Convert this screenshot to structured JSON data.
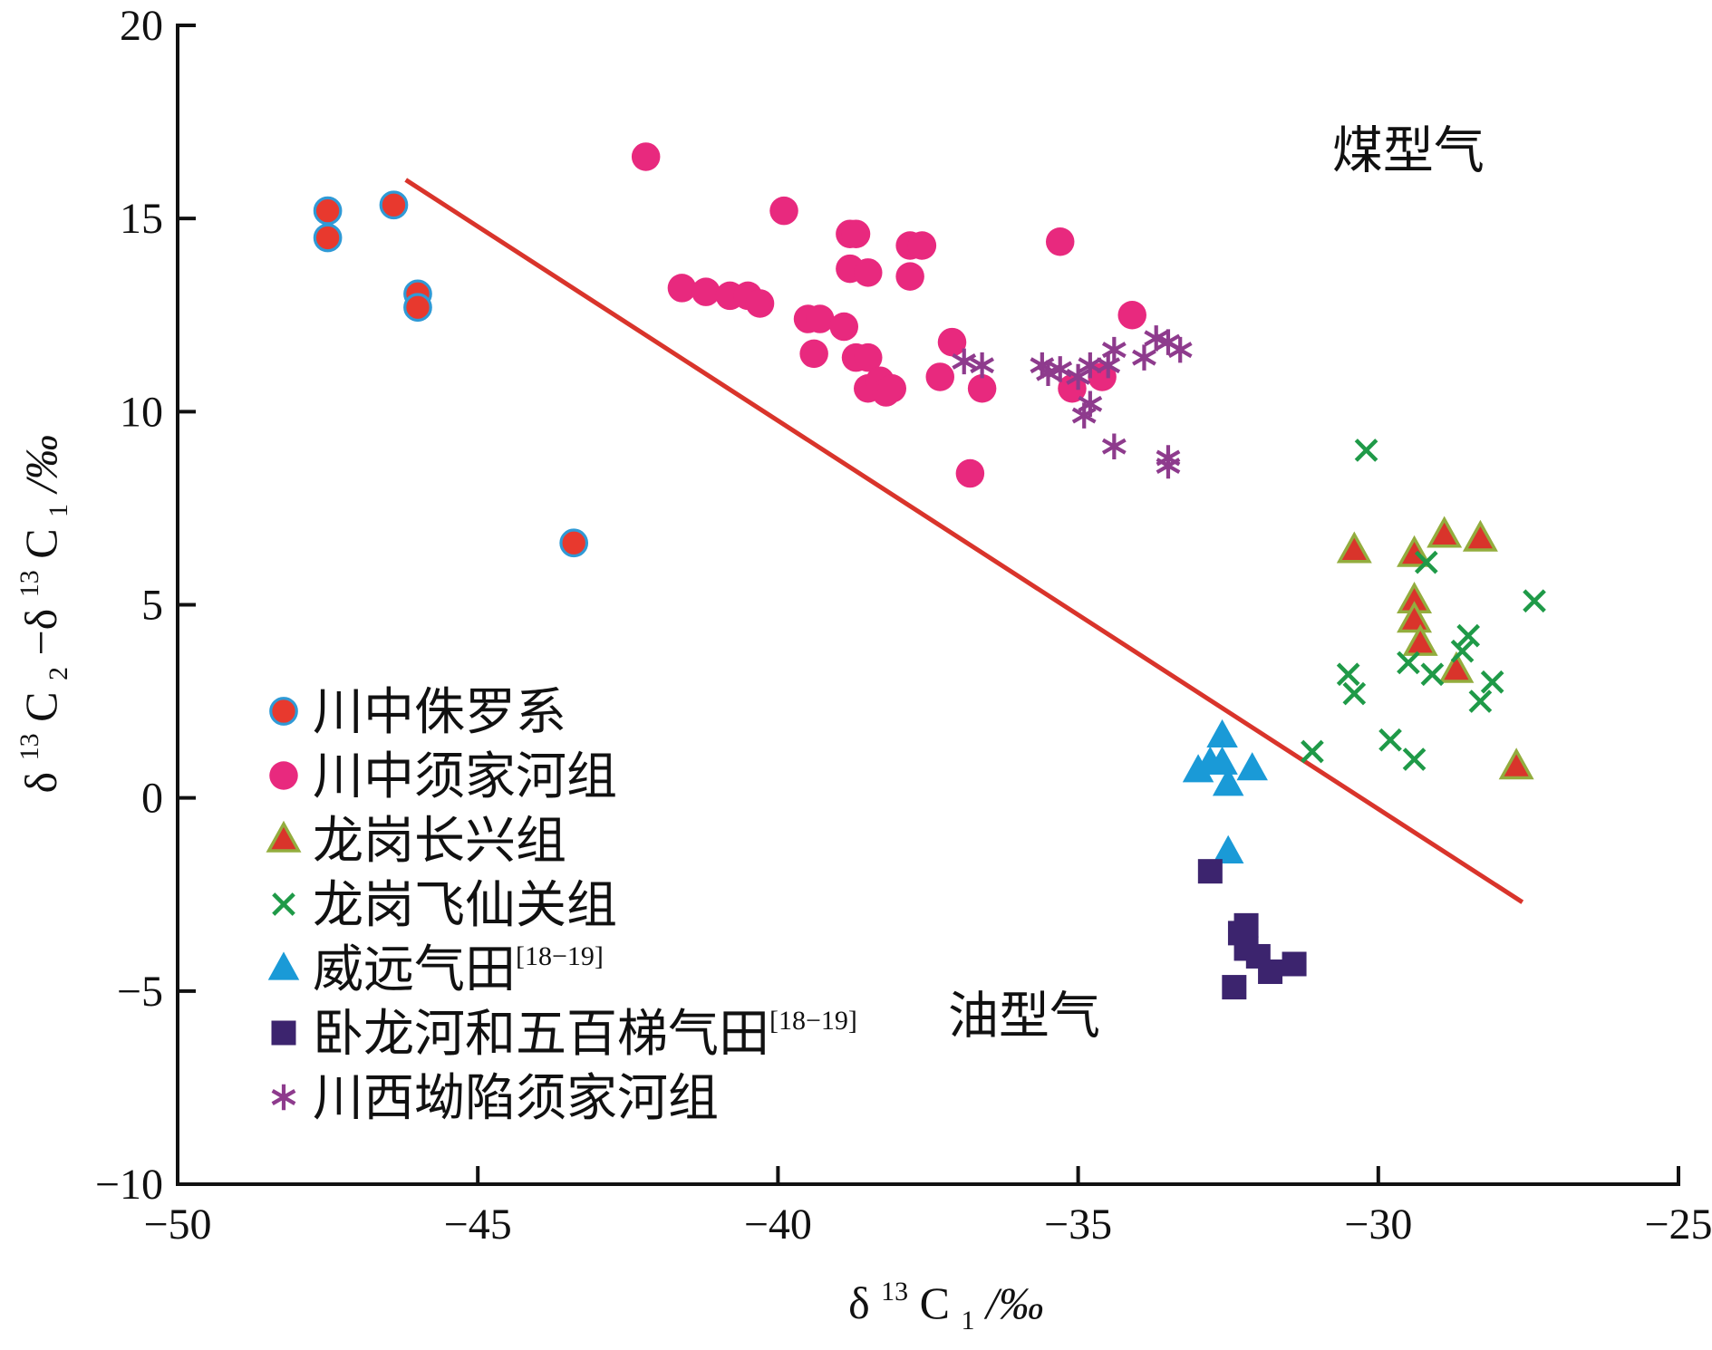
{
  "chart_data": {
    "type": "scatter",
    "xlabel": {
      "main": "δ",
      "sup1": "13",
      "c": "C",
      "sub1": "1",
      "unit": "/‰"
    },
    "ylabel": {
      "main": "δ",
      "sup1": "13",
      "c": "C",
      "sub1": "2",
      "minus": "−δ",
      "sup2": "13",
      "c2": "C",
      "sub2": "1",
      "unit": "/‰"
    },
    "xlim": [
      -50,
      -25
    ],
    "ylim": [
      -10,
      20
    ],
    "xticks": [
      -50,
      -45,
      -40,
      -35,
      -30,
      -25
    ],
    "yticks": [
      -10,
      -5,
      0,
      5,
      10,
      15,
      20
    ],
    "xtick_labels": [
      "−50",
      "−45",
      "−40",
      "−35",
      "−30",
      "−25"
    ],
    "ytick_labels": [
      "−10",
      "−5",
      "0",
      "5",
      "10",
      "15",
      "20"
    ],
    "grid": false,
    "annotations": [
      {
        "text": "煤型气",
        "x": -29.5,
        "y": 16.3
      },
      {
        "text": "油型气",
        "x": -35.9,
        "y": -6.1
      }
    ],
    "divider": {
      "x": [
        -46.2,
        -27.6
      ],
      "y": [
        16.0,
        -2.7
      ],
      "color": "#d9342b"
    },
    "legend_position": "lower-left",
    "series": [
      {
        "name": "川中侏罗系",
        "marker": "circle-outlined",
        "color": "#e8392e",
        "stroke": "#2f9ad6",
        "points": [
          [
            -47.5,
            15.2
          ],
          [
            -47.5,
            14.5
          ],
          [
            -46.4,
            15.35
          ],
          [
            -46.0,
            13.05
          ],
          [
            -46.0,
            12.7
          ],
          [
            -43.4,
            6.6
          ]
        ]
      },
      {
        "name": "川中须家河组",
        "marker": "circle",
        "color": "#e8297e",
        "points": [
          [
            -42.2,
            16.6
          ],
          [
            -41.6,
            13.2
          ],
          [
            -41.2,
            13.1
          ],
          [
            -40.8,
            13.0
          ],
          [
            -40.5,
            13.0
          ],
          [
            -40.3,
            12.8
          ],
          [
            -39.9,
            15.2
          ],
          [
            -39.5,
            12.4
          ],
          [
            -39.3,
            12.4
          ],
          [
            -39.4,
            11.5
          ],
          [
            -38.9,
            12.2
          ],
          [
            -38.8,
            14.6
          ],
          [
            -38.7,
            14.6
          ],
          [
            -38.8,
            13.7
          ],
          [
            -38.7,
            11.4
          ],
          [
            -38.5,
            11.4
          ],
          [
            -38.5,
            13.6
          ],
          [
            -38.5,
            10.6
          ],
          [
            -38.3,
            10.8
          ],
          [
            -38.2,
            10.5
          ],
          [
            -38.1,
            10.6
          ],
          [
            -37.8,
            14.3
          ],
          [
            -37.6,
            14.3
          ],
          [
            -37.8,
            13.5
          ],
          [
            -37.1,
            11.8
          ],
          [
            -37.3,
            10.9
          ],
          [
            -36.6,
            10.6
          ],
          [
            -36.8,
            8.4
          ],
          [
            -35.3,
            14.4
          ],
          [
            -35.1,
            10.6
          ],
          [
            -34.6,
            10.9
          ],
          [
            -34.1,
            12.5
          ]
        ]
      },
      {
        "name": "龙岗长兴组",
        "marker": "triangle-outlined",
        "color": "#d9342b",
        "stroke": "#93ad3e",
        "points": [
          [
            -30.4,
            6.4
          ],
          [
            -29.4,
            6.3
          ],
          [
            -28.9,
            6.8
          ],
          [
            -28.3,
            6.7
          ],
          [
            -29.4,
            5.1
          ],
          [
            -29.4,
            4.6
          ],
          [
            -29.3,
            4.0
          ],
          [
            -28.7,
            3.3
          ],
          [
            -27.7,
            0.8
          ]
        ]
      },
      {
        "name": "龙岗飞仙关组",
        "marker": "x",
        "color": "#1f9a48",
        "points": [
          [
            -30.2,
            9.0
          ],
          [
            -29.2,
            6.1
          ],
          [
            -27.4,
            5.1
          ],
          [
            -28.5,
            4.2
          ],
          [
            -28.6,
            3.8
          ],
          [
            -30.5,
            3.2
          ],
          [
            -30.4,
            2.7
          ],
          [
            -29.5,
            3.5
          ],
          [
            -29.1,
            3.2
          ],
          [
            -28.1,
            3.0
          ],
          [
            -28.3,
            2.5
          ],
          [
            -29.8,
            1.5
          ],
          [
            -29.4,
            1.0
          ],
          [
            -31.1,
            1.2
          ]
        ]
      },
      {
        "name": "威远气田",
        "name_sup": "[18−19]",
        "marker": "triangle",
        "color": "#1a9ad7",
        "points": [
          [
            -32.6,
            1.6
          ],
          [
            -32.8,
            0.9
          ],
          [
            -32.6,
            0.9
          ],
          [
            -33.0,
            0.7
          ],
          [
            -32.1,
            0.75
          ],
          [
            -32.5,
            0.35
          ],
          [
            -32.5,
            -1.4
          ]
        ]
      },
      {
        "name": "卧龙河和五百梯气田",
        "name_sup": "[18−19]",
        "marker": "square",
        "color": "#3c246e",
        "points": [
          [
            -32.8,
            -1.9
          ],
          [
            -32.2,
            -3.3
          ],
          [
            -32.3,
            -3.5
          ],
          [
            -32.2,
            -3.9
          ],
          [
            -32.0,
            -4.1
          ],
          [
            -31.8,
            -4.5
          ],
          [
            -31.4,
            -4.3
          ],
          [
            -32.4,
            -4.9
          ]
        ]
      },
      {
        "name": "川西坳陷须家河组",
        "marker": "asterisk",
        "color": "#8e3b8d",
        "points": [
          [
            -36.9,
            11.3
          ],
          [
            -36.6,
            11.2
          ],
          [
            -35.6,
            11.2
          ],
          [
            -35.5,
            11.0
          ],
          [
            -35.3,
            11.1
          ],
          [
            -35.0,
            10.9
          ],
          [
            -34.8,
            11.2
          ],
          [
            -34.4,
            11.6
          ],
          [
            -34.5,
            11.2
          ],
          [
            -34.8,
            10.2
          ],
          [
            -34.9,
            9.9
          ],
          [
            -34.4,
            9.1
          ],
          [
            -33.9,
            11.4
          ],
          [
            -33.7,
            11.9
          ],
          [
            -33.5,
            11.8
          ],
          [
            -33.3,
            11.6
          ],
          [
            -33.5,
            8.8
          ],
          [
            -33.5,
            8.6
          ]
        ]
      }
    ]
  }
}
